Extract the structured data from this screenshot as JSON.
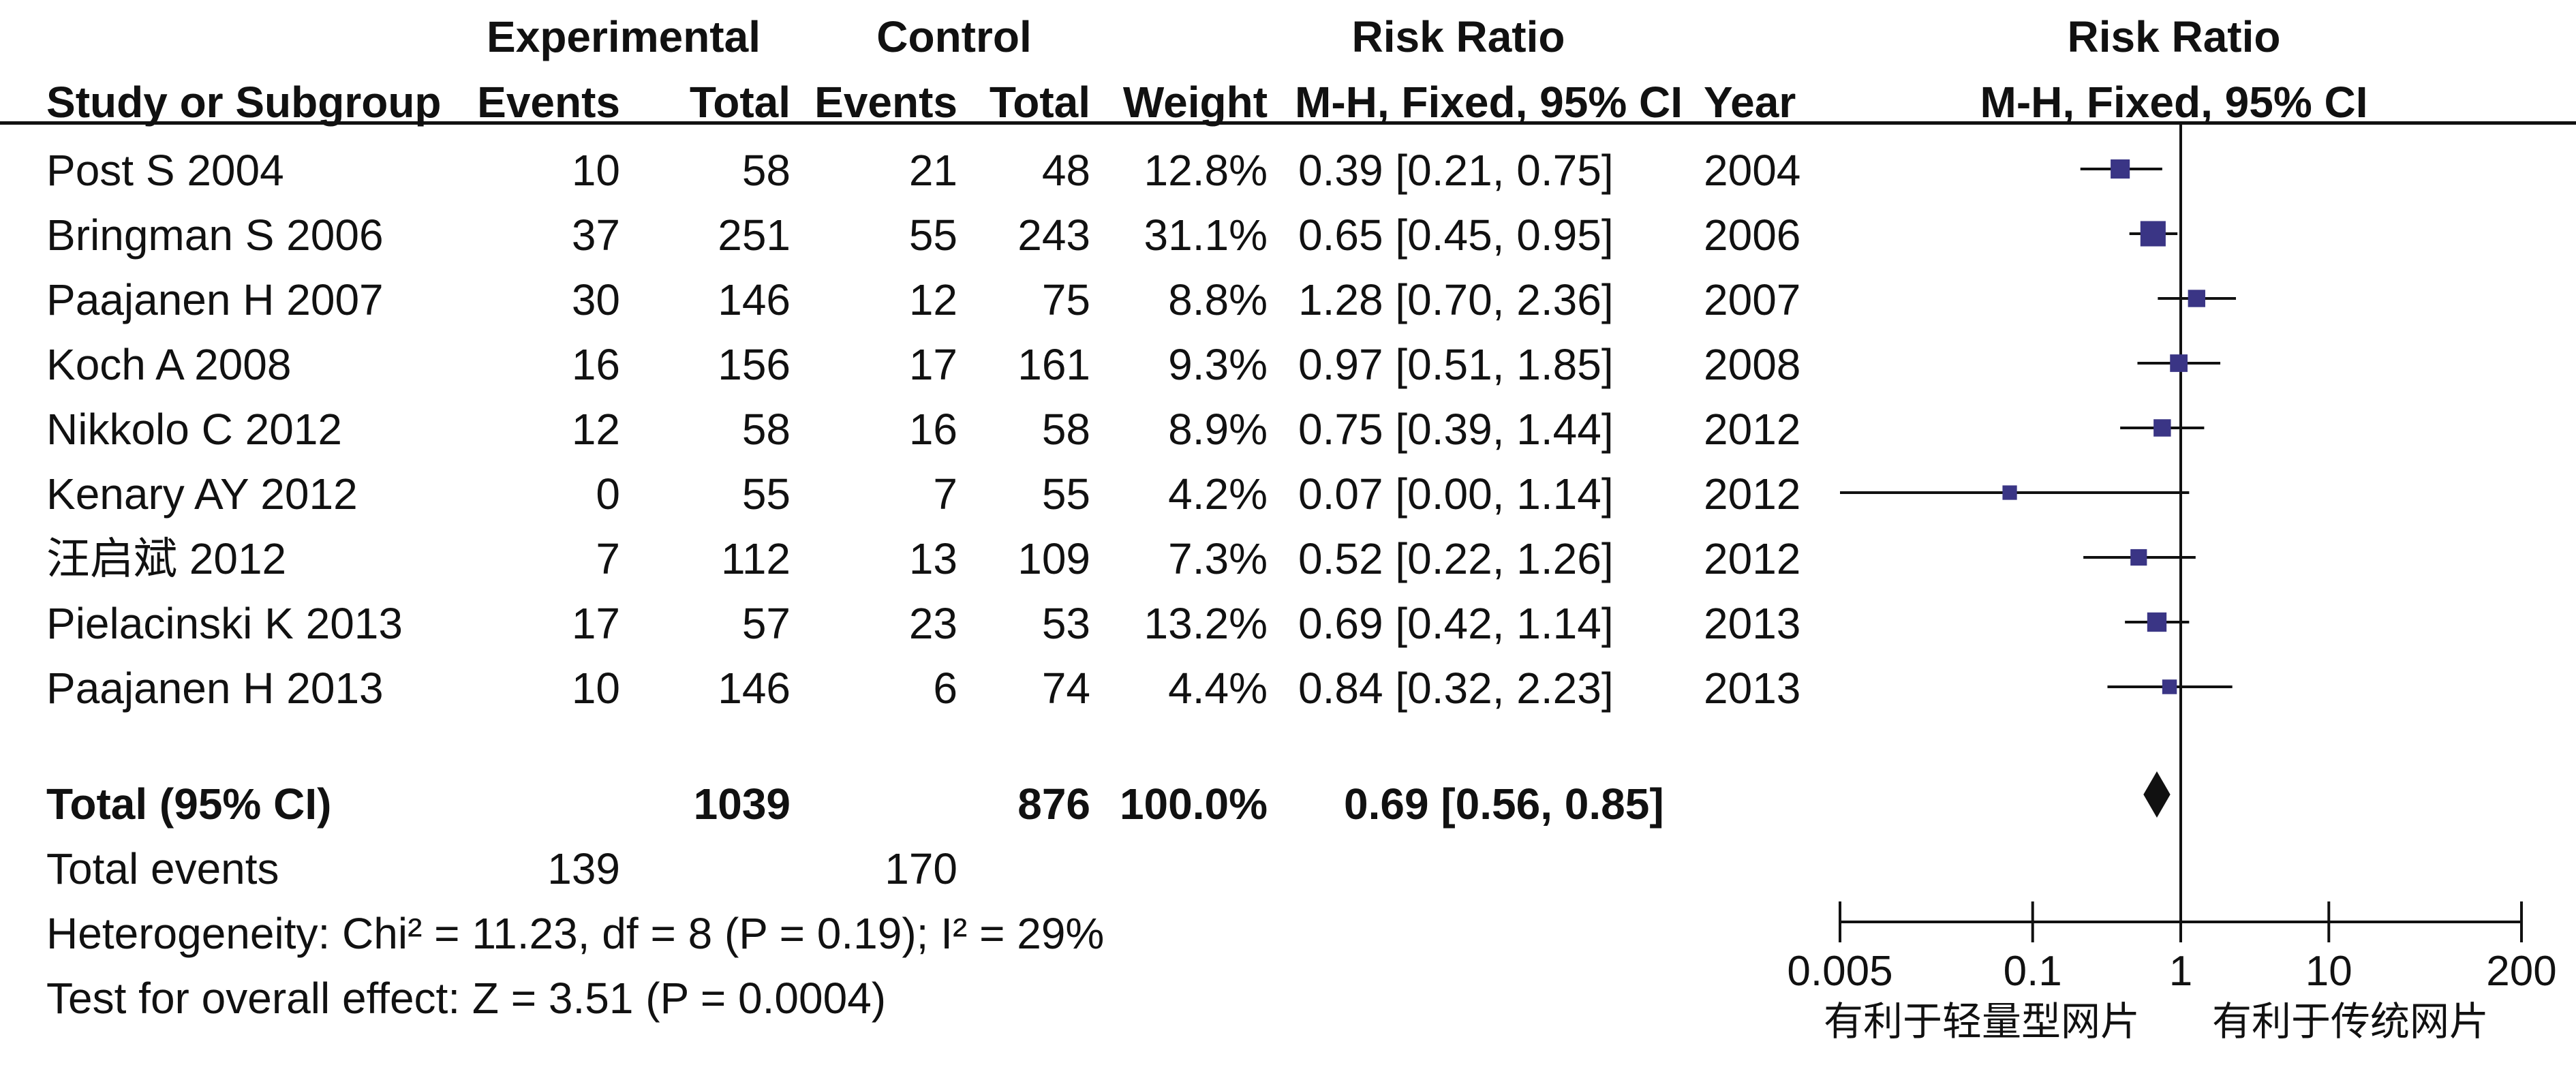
{
  "headers": {
    "experimental": "Experimental",
    "control": "Control",
    "risk_ratio": "Risk Ratio",
    "study": "Study or Subgroup",
    "exp_events": "Events",
    "exp_total": "Total",
    "ctl_events": "Events",
    "ctl_total": "Total",
    "weight": "Weight",
    "method": "M-H, Fixed, 95% CI",
    "year": "Year",
    "plot_title": "Risk Ratio",
    "plot_method": "M-H, Fixed, 95% CI"
  },
  "studies": [
    {
      "name": "Post S 2004",
      "e_events": "10",
      "e_total": "58",
      "c_events": "21",
      "c_total": "48",
      "weight": "12.8%",
      "ci": "0.39 [0.21, 0.75]",
      "year": "2004"
    },
    {
      "name": "Bringman S 2006",
      "e_events": "37",
      "e_total": "251",
      "c_events": "55",
      "c_total": "243",
      "weight": "31.1%",
      "ci": "0.65 [0.45, 0.95]",
      "year": "2006"
    },
    {
      "name": "Paajanen H 2007",
      "e_events": "30",
      "e_total": "146",
      "c_events": "12",
      "c_total": "75",
      "weight": "8.8%",
      "ci": "1.28 [0.70, 2.36]",
      "year": "2007"
    },
    {
      "name": "Koch A 2008",
      "e_events": "16",
      "e_total": "156",
      "c_events": "17",
      "c_total": "161",
      "weight": "9.3%",
      "ci": "0.97 [0.51, 1.85]",
      "year": "2008"
    },
    {
      "name": "Nikkolo C 2012",
      "e_events": "12",
      "e_total": "58",
      "c_events": "16",
      "c_total": "58",
      "weight": "8.9%",
      "ci": "0.75 [0.39, 1.44]",
      "year": "2012"
    },
    {
      "name": "Kenary AY 2012",
      "e_events": "0",
      "e_total": "55",
      "c_events": "7",
      "c_total": "55",
      "weight": "4.2%",
      "ci": "0.07 [0.00, 1.14]",
      "year": "2012"
    },
    {
      "name": "汪启斌 2012",
      "e_events": "7",
      "e_total": "112",
      "c_events": "13",
      "c_total": "109",
      "weight": "7.3%",
      "ci": "0.52 [0.22, 1.26]",
      "year": "2012"
    },
    {
      "name": "Pielacinski K 2013",
      "e_events": "17",
      "e_total": "57",
      "c_events": "23",
      "c_total": "53",
      "weight": "13.2%",
      "ci": "0.69 [0.42, 1.14]",
      "year": "2013"
    },
    {
      "name": "Paajanen H 2013",
      "e_events": "10",
      "e_total": "146",
      "c_events": "6",
      "c_total": "74",
      "weight": "4.4%",
      "ci": "0.84 [0.32, 2.23]",
      "year": "2013"
    }
  ],
  "total": {
    "label": "Total (95% CI)",
    "e_total": "1039",
    "c_total": "876",
    "weight": "100.0%",
    "ci": "0.69 [0.56, 0.85]"
  },
  "total_events": {
    "label": "Total events",
    "e_events": "139",
    "c_events": "170"
  },
  "heterogeneity": "Heterogeneity: Chi² = 11.23, df = 8 (P = 0.19); I² = 29%",
  "overall_effect": "Test for overall effect: Z = 3.51 (P = 0.0004)",
  "axis_labels": {
    "left": "有利于轻量型网片",
    "right": "有利于传统网片"
  },
  "chart_data": {
    "type": "forest",
    "x_scale": "log",
    "xlim": [
      0.005,
      200
    ],
    "ticks": [
      0.005,
      0.1,
      1,
      10,
      200
    ],
    "tick_labels": [
      "0.005",
      "0.1",
      "1",
      "10",
      "200"
    ],
    "reference_line": 1,
    "points": [
      {
        "study": "Post S 2004",
        "rr": 0.39,
        "lo": 0.21,
        "hi": 0.75,
        "weight": 12.8
      },
      {
        "study": "Bringman S 2006",
        "rr": 0.65,
        "lo": 0.45,
        "hi": 0.95,
        "weight": 31.1
      },
      {
        "study": "Paajanen H 2007",
        "rr": 1.28,
        "lo": 0.7,
        "hi": 2.36,
        "weight": 8.8
      },
      {
        "study": "Koch A 2008",
        "rr": 0.97,
        "lo": 0.51,
        "hi": 1.85,
        "weight": 9.3
      },
      {
        "study": "Nikkolo C 2012",
        "rr": 0.75,
        "lo": 0.39,
        "hi": 1.44,
        "weight": 8.9
      },
      {
        "study": "Kenary AY 2012",
        "rr": 0.07,
        "lo": 0.0,
        "hi": 1.14,
        "weight": 4.2
      },
      {
        "study": "汪启斌 2012",
        "rr": 0.52,
        "lo": 0.22,
        "hi": 1.26,
        "weight": 7.3
      },
      {
        "study": "Pielacinski K 2013",
        "rr": 0.69,
        "lo": 0.42,
        "hi": 1.14,
        "weight": 13.2
      },
      {
        "study": "Paajanen H 2013",
        "rr": 0.84,
        "lo": 0.32,
        "hi": 2.23,
        "weight": 4.4
      }
    ],
    "pooled": {
      "rr": 0.69,
      "lo": 0.56,
      "hi": 0.85
    },
    "colors": {
      "marker": "#3a3585",
      "line": "#111111"
    }
  }
}
